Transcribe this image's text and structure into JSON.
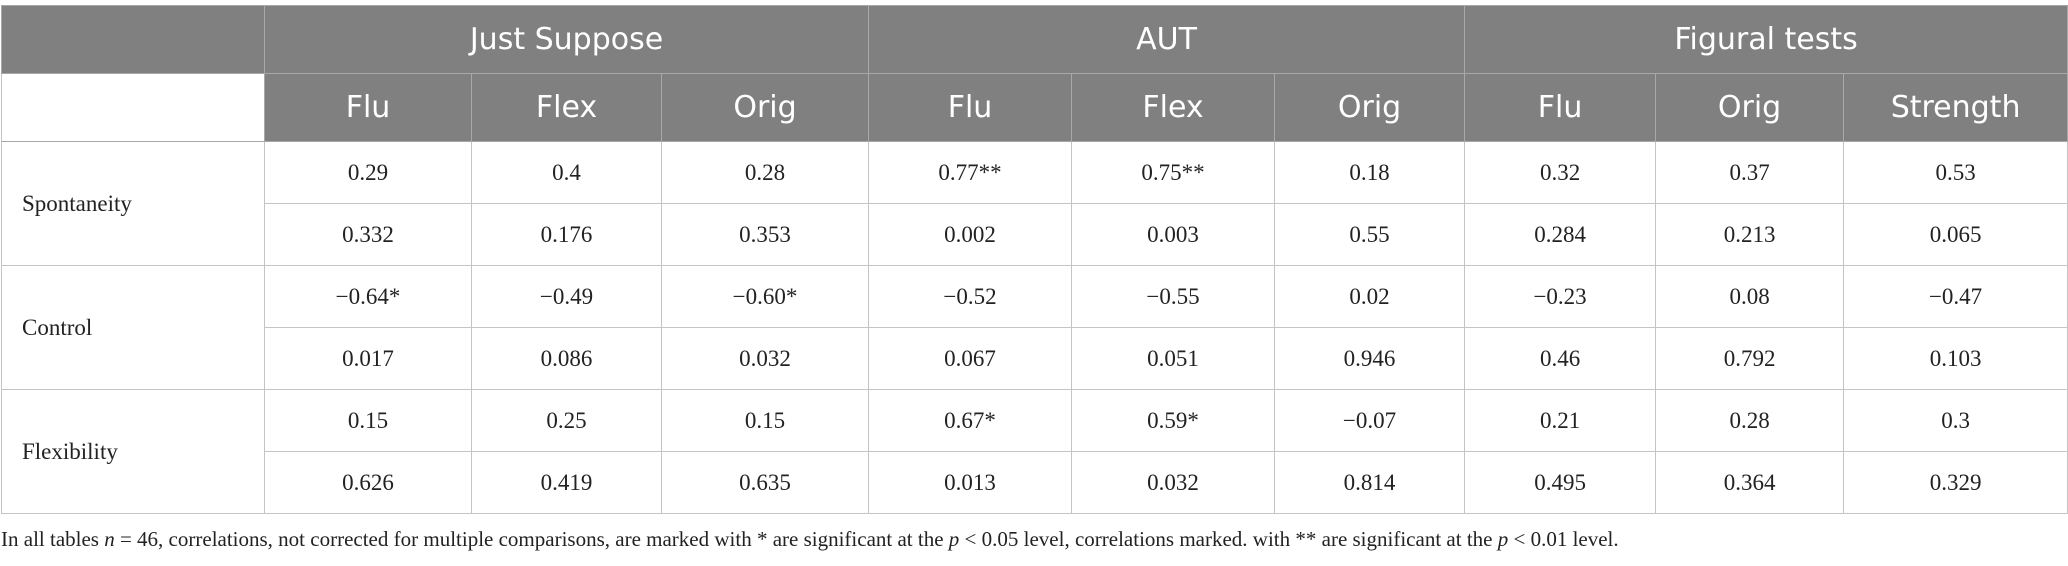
{
  "header": {
    "groups": [
      "Just Suppose",
      "AUT",
      "Figural tests"
    ],
    "group_spans": [
      3,
      3,
      3
    ],
    "columns": [
      "Flu",
      "Flex",
      "Orig",
      "Flu",
      "Flex",
      "Orig",
      "Flu",
      "Orig",
      "Strength"
    ]
  },
  "rows": [
    {
      "label": "Spontaneity",
      "values": [
        [
          "0.29",
          "0.4",
          "0.28",
          "0.77**",
          "0.75**",
          "0.18",
          "0.32",
          "0.37",
          "0.53"
        ],
        [
          "0.332",
          "0.176",
          "0.353",
          "0.002",
          "0.003",
          "0.55",
          "0.284",
          "0.213",
          "0.065"
        ]
      ]
    },
    {
      "label": "Control",
      "values": [
        [
          "−0.64*",
          "−0.49",
          "−0.60*",
          "−0.52",
          "−0.55",
          "0.02",
          "−0.23",
          "0.08",
          "−0.47"
        ],
        [
          "0.017",
          "0.086",
          "0.032",
          "0.067",
          "0.051",
          "0.946",
          "0.46",
          "0.792",
          "0.103"
        ]
      ]
    },
    {
      "label": "Flexibility",
      "values": [
        [
          "0.15",
          "0.25",
          "0.15",
          "0.67*",
          "0.59*",
          "−0.07",
          "0.21",
          "0.28",
          "0.3"
        ],
        [
          "0.626",
          "0.419",
          "0.635",
          "0.013",
          "0.032",
          "0.814",
          "0.495",
          "0.364",
          "0.329"
        ]
      ]
    }
  ],
  "footnote": [
    "In all tables ",
    "n",
    " = 46, correlations, not corrected for multiple comparisons, are marked with * are significant at the ",
    "p",
    " < 0.05 level, correlations marked. with ** are significant at the ",
    "p",
    " < 0.01 level."
  ]
}
